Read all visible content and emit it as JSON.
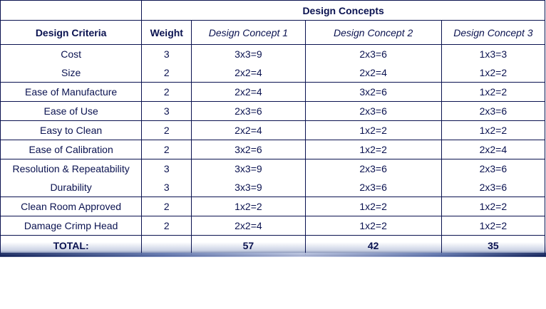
{
  "header": {
    "group_title": "Design Concepts",
    "criteria": "Design Criteria",
    "weight": "Weight",
    "concept1": "Design Concept 1",
    "concept2": "Design Concept 2",
    "concept3": "Design Concept 3"
  },
  "rows": [
    {
      "criterion": "Cost",
      "weight": "3",
      "c1": "3x3=9",
      "c2": "2x3=6",
      "c3": "1x3=3"
    },
    {
      "criterion": "Size",
      "weight": "2",
      "c1": "2x2=4",
      "c2": "2x2=4",
      "c3": "1x2=2"
    },
    {
      "criterion": "Ease of Manufacture",
      "weight": "2",
      "c1": "2x2=4",
      "c2": "3x2=6",
      "c3": "1x2=2"
    },
    {
      "criterion": "Ease of Use",
      "weight": "3",
      "c1": "2x3=6",
      "c2": "2x3=6",
      "c3": "2x3=6"
    },
    {
      "criterion": "Easy to Clean",
      "weight": "2",
      "c1": "2x2=4",
      "c2": "1x2=2",
      "c3": "1x2=2"
    },
    {
      "criterion": "Ease of Calibration",
      "weight": "2",
      "c1": "3x2=6",
      "c2": "1x2=2",
      "c3": "2x2=4"
    },
    {
      "criterion": "Resolution & Repeatability",
      "weight": "3",
      "c1": "3x3=9",
      "c2": "2x3=6",
      "c3": "2x3=6"
    },
    {
      "criterion": "Durability",
      "weight": "3",
      "c1": "3x3=9",
      "c2": "2x3=6",
      "c3": "2x3=6"
    },
    {
      "criterion": "Clean Room Approved",
      "weight": "2",
      "c1": "1x2=2",
      "c2": "1x2=2",
      "c3": "1x2=2"
    },
    {
      "criterion": "Damage Crimp Head",
      "weight": "2",
      "c1": "2x2=4",
      "c2": "1x2=2",
      "c3": "1x2=2"
    }
  ],
  "total": {
    "label": "TOTAL:",
    "c1": "57",
    "c2": "42",
    "c3": "35"
  }
}
